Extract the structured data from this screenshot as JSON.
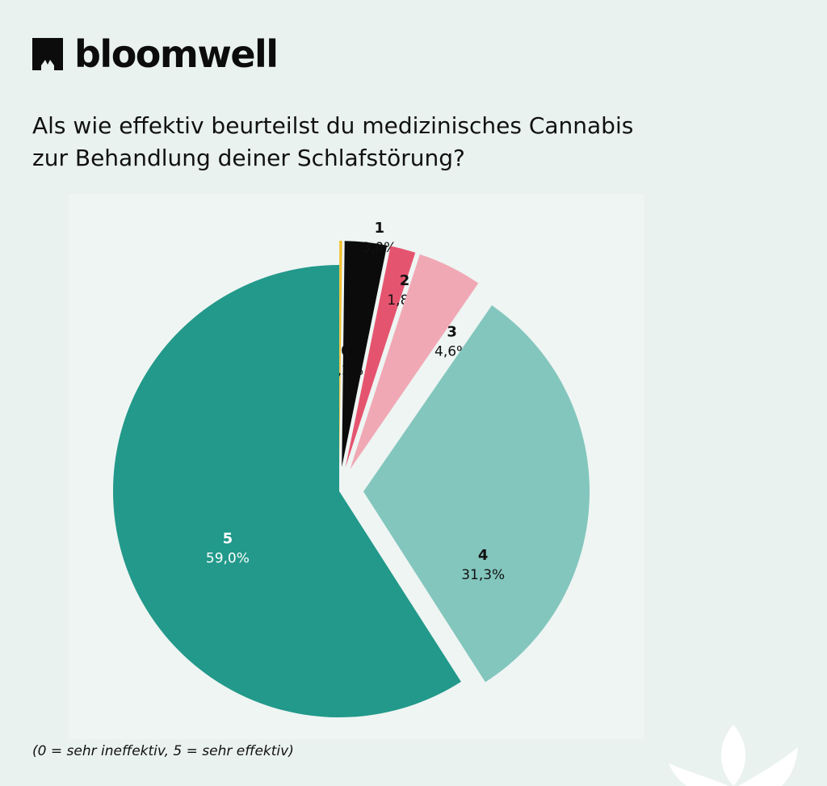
{
  "brand": {
    "name": "bloomwell",
    "logo_icon": "bloomwell-logo-icon"
  },
  "question": {
    "line1": "Als wie effektiv beurteilst du medizinisches Cannabis",
    "line2": "zur Behandlung deiner Schlafstörung?"
  },
  "footnote": "(0 = sehr ineffektiv, 5 = sehr effektiv)",
  "chart_data": {
    "type": "pie",
    "categories": [
      "0",
      "1",
      "2",
      "3",
      "4",
      "5"
    ],
    "values": [
      0.2,
      3.0,
      1.8,
      4.6,
      31.3,
      59.0
    ],
    "value_labels": [
      "0,2%",
      "3,0%",
      "1,8%",
      "4,6%",
      "31,3%",
      "59,0%"
    ],
    "colors": [
      "#f3bf2c",
      "#0b0b0b",
      "#e5546f",
      "#f1a8b5",
      "#83c6bd",
      "#22998a"
    ],
    "exploded": [
      true,
      true,
      true,
      true,
      true,
      false
    ],
    "start_angle_deg": 0,
    "direction": "clockwise",
    "label_colors": [
      "#111111",
      "#111111",
      "#111111",
      "#111111",
      "#111111",
      "#ffffff"
    ]
  }
}
